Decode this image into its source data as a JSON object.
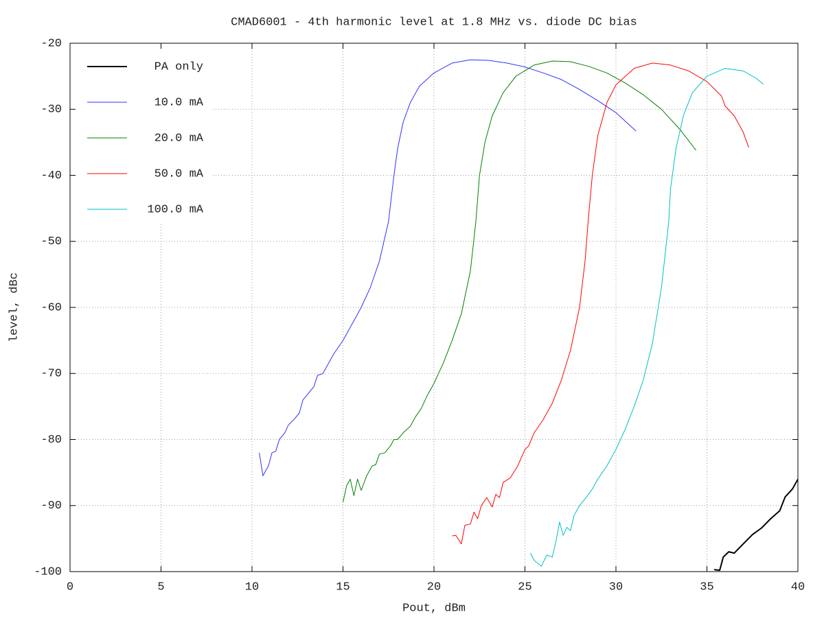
{
  "chart_data": {
    "type": "line",
    "title": "CMAD6001 - 4th harmonic level at 1.8 MHz vs. diode DC bias",
    "x_label": "Pout, dBm",
    "y_label": "level, dBc",
    "xlim": [
      0,
      40
    ],
    "xticks": [
      0,
      5,
      10,
      15,
      20,
      25,
      30,
      35,
      40
    ],
    "ylim": [
      -100,
      -20
    ],
    "yticks": [
      -100,
      -90,
      -80,
      -70,
      -60,
      -50,
      -40,
      -30,
      -20
    ],
    "grid": true,
    "legend": "upper left",
    "series": [
      {
        "name": "PA only",
        "color": "#000000",
        "x": [
          35.4,
          35.7,
          35.9,
          36.2,
          36.5,
          37.0,
          37.5,
          38.0,
          38.5,
          39.0,
          39.3,
          39.7,
          40.0
        ],
        "values": [
          -99.7,
          -99.8,
          -97.8,
          -97,
          -97.2,
          -95.8,
          -94.4,
          -93.4,
          -92,
          -90.8,
          -88.7,
          -87.5,
          -86
        ]
      },
      {
        "name": "10.0 mA",
        "color": "#3030ff",
        "x": [
          10.4,
          10.6,
          10.9,
          11.1,
          11.3,
          11.5,
          11.8,
          12.0,
          12.3,
          12.6,
          12.8,
          13.1,
          13.4,
          13.6,
          13.9,
          14.2,
          14.5,
          15.0,
          15.5,
          16.0,
          16.5,
          17.0,
          17.5,
          17.8,
          18.0,
          18.3,
          18.7,
          19.2,
          20.0,
          21.0,
          22.0,
          23.0,
          24.0,
          25.0,
          26.0,
          27.0,
          28.0,
          29.0,
          30.0,
          31.1
        ],
        "values": [
          -82,
          -85.5,
          -84,
          -82,
          -81.8,
          -80,
          -79,
          -77.8,
          -77,
          -76,
          -74,
          -73,
          -72,
          -70.3,
          -70,
          -68.5,
          -67,
          -65,
          -62.5,
          -60,
          -57,
          -53,
          -47,
          -40,
          -36,
          -32,
          -29,
          -26.5,
          -24.5,
          -23,
          -22.5,
          -22.6,
          -23,
          -23.6,
          -24.5,
          -25.5,
          -27,
          -28.7,
          -30.5,
          -33.3
        ]
      },
      {
        "name": "20.0 mA",
        "color": "#008000",
        "x": [
          15.0,
          15.2,
          15.4,
          15.6,
          15.8,
          16.0,
          16.3,
          16.6,
          16.8,
          17.0,
          17.3,
          17.6,
          17.8,
          18.0,
          18.3,
          18.7,
          19.0,
          19.3,
          19.6,
          20.0,
          20.5,
          21.0,
          21.5,
          22.0,
          22.3,
          22.5,
          22.8,
          23.2,
          23.8,
          24.5,
          25.5,
          26.5,
          27.5,
          28.5,
          29.5,
          30.5,
          31.5,
          32.5,
          33.5,
          34.4
        ],
        "values": [
          -89.5,
          -87,
          -86,
          -88.5,
          -86,
          -87.7,
          -85.5,
          -84,
          -83.8,
          -82.2,
          -82,
          -81,
          -80,
          -80,
          -79,
          -78,
          -76.5,
          -75.3,
          -73.5,
          -71.5,
          -68.5,
          -65,
          -61,
          -54.5,
          -47,
          -40,
          -35,
          -31,
          -27.5,
          -25,
          -23.3,
          -22.7,
          -22.8,
          -23.5,
          -24.5,
          -26,
          -27.8,
          -30,
          -33,
          -36.2
        ]
      },
      {
        "name": "50.0 mA",
        "color": "#ff0000",
        "x": [
          21.0,
          21.2,
          21.5,
          21.7,
          22.0,
          22.2,
          22.4,
          22.6,
          22.9,
          23.2,
          23.4,
          23.6,
          23.8,
          24.2,
          24.6,
          25.0,
          25.2,
          25.5,
          26.0,
          26.5,
          27.0,
          27.5,
          28.0,
          28.3,
          28.5,
          28.7,
          29.0,
          29.5,
          30.0,
          31.0,
          32.0,
          33.0,
          34.0,
          35.0,
          35.8,
          36.0,
          36.5,
          37.0,
          37.3
        ],
        "values": [
          -94.6,
          -94.5,
          -95.8,
          -93,
          -92.8,
          -91,
          -92,
          -90,
          -88.8,
          -90.2,
          -88.3,
          -88.8,
          -86.5,
          -85.8,
          -84,
          -81.5,
          -81,
          -79,
          -77,
          -74.5,
          -71,
          -66.5,
          -60,
          -53,
          -46,
          -40,
          -34,
          -29,
          -26.3,
          -23.8,
          -23,
          -23.3,
          -24.2,
          -25.8,
          -28,
          -29.5,
          -31,
          -33.5,
          -35.8
        ]
      },
      {
        "name": "100.0 mA",
        "color": "#00c0c0",
        "x": [
          25.3,
          25.5,
          25.9,
          26.2,
          26.5,
          26.7,
          26.9,
          27.1,
          27.3,
          27.5,
          27.7,
          28.0,
          28.3,
          28.7,
          29.0,
          29.5,
          30.0,
          30.5,
          31.0,
          31.5,
          32.0,
          32.5,
          32.9,
          33.0,
          33.3,
          33.7,
          34.2,
          35.0,
          36.0,
          37.0,
          37.7,
          38.1
        ],
        "values": [
          -97.2,
          -98.3,
          -99.2,
          -97.5,
          -97.8,
          -95.5,
          -92.5,
          -94.5,
          -93.3,
          -93.8,
          -91.5,
          -90,
          -89,
          -87.5,
          -86,
          -84,
          -81.5,
          -78.5,
          -75,
          -71,
          -65.5,
          -57,
          -47,
          -42,
          -36,
          -31,
          -27.5,
          -25,
          -23.8,
          -24.2,
          -25.3,
          -26.2
        ]
      }
    ]
  }
}
